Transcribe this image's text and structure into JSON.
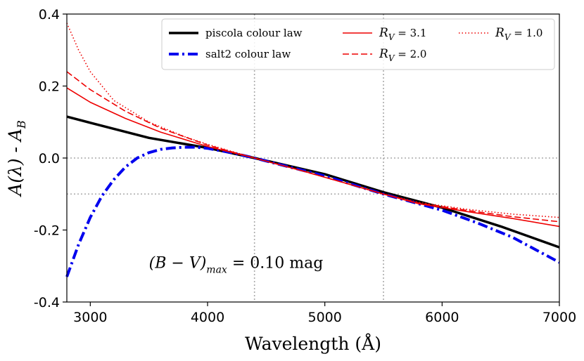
{
  "chart_data": {
    "type": "line",
    "title": "",
    "xlabel": "Wavelength (Å)",
    "ylabel": "A(λ) - A_B",
    "ylabel_parts": {
      "main": "A(λ) - A",
      "sub": "B"
    },
    "xlim": [
      2800,
      7000
    ],
    "ylim": [
      -0.4,
      0.4
    ],
    "xticks": [
      3000,
      4000,
      5000,
      6000,
      7000
    ],
    "yticks": [
      -0.4,
      -0.2,
      0.0,
      0.2,
      0.4
    ],
    "xtick_labels": [
      "3000",
      "4000",
      "5000",
      "6000",
      "7000"
    ],
    "ytick_labels": [
      "-0.4",
      "-0.2",
      "0.0",
      "0.2",
      "0.4"
    ],
    "reference_lines": {
      "vertical": [
        4400,
        5500
      ],
      "horizontal": [
        0.0,
        -0.1
      ]
    },
    "annotation": {
      "text": "(B − V)max = 0.10 mag",
      "math": "(B − V)",
      "sub": "max",
      "rest": " = 0.10 mag",
      "x": 3500,
      "y": -0.29
    },
    "legend_position": "top-right",
    "series": [
      {
        "name": "piscola colour law",
        "label_text": "piscola colour law",
        "color": "#000000",
        "style": "solid",
        "width": 3.5,
        "x": [
          2800,
          3000,
          3500,
          4000,
          4400,
          5000,
          5500,
          6000,
          6500,
          7000
        ],
        "y": [
          0.115,
          0.098,
          0.056,
          0.028,
          0.0,
          -0.045,
          -0.095,
          -0.138,
          -0.19,
          -0.248
        ]
      },
      {
        "name": "salt2 colour law",
        "label_text": "salt2 colour law",
        "color": "#0000ee",
        "style": "dashdot",
        "width": 4,
        "x": [
          2800,
          2900,
          3000,
          3100,
          3200,
          3300,
          3400,
          3500,
          3600,
          3700,
          3800,
          3900,
          4000,
          4200,
          4400,
          4700,
          5000,
          5500,
          6000,
          6300,
          6600,
          7000
        ],
        "y": [
          -0.33,
          -0.24,
          -0.165,
          -0.105,
          -0.06,
          -0.025,
          0.0,
          0.015,
          0.024,
          0.028,
          0.03,
          0.03,
          0.027,
          0.015,
          0.0,
          -0.025,
          -0.05,
          -0.1,
          -0.145,
          -0.18,
          -0.22,
          -0.29
        ]
      },
      {
        "name": "R_V = 3.1",
        "label_sym": "R",
        "label_sub": "V",
        "label_val": " = 3.1",
        "color": "#ee0000",
        "style": "solid",
        "width": 1.6,
        "x": [
          2800,
          3000,
          3300,
          3600,
          4000,
          4400,
          4800,
          5200,
          5500,
          5800,
          6200,
          6600,
          7000
        ],
        "y": [
          0.195,
          0.155,
          0.11,
          0.072,
          0.032,
          0.0,
          -0.035,
          -0.072,
          -0.1,
          -0.127,
          -0.148,
          -0.168,
          -0.19
        ]
      },
      {
        "name": "R_V = 2.0",
        "label_sym": "R",
        "label_sub": "V",
        "label_val": " = 2.0",
        "color": "#ee0000",
        "style": "dashed",
        "width": 1.6,
        "x": [
          2800,
          3000,
          3300,
          3600,
          4000,
          4400,
          4800,
          5200,
          5500,
          5800,
          6200,
          6600,
          7000
        ],
        "y": [
          0.24,
          0.19,
          0.13,
          0.083,
          0.036,
          0.0,
          -0.035,
          -0.072,
          -0.1,
          -0.125,
          -0.145,
          -0.163,
          -0.177
        ]
      },
      {
        "name": "R_V = 1.0",
        "label_sym": "R",
        "label_sub": "V",
        "label_val": " = 1.0",
        "color": "#ee0000",
        "style": "dotted",
        "width": 1.6,
        "x": [
          2800,
          2900,
          3000,
          3200,
          3500,
          3800,
          4000,
          4400,
          4800,
          5200,
          5500,
          5800,
          6200,
          6600,
          7000
        ],
        "y": [
          0.375,
          0.3,
          0.24,
          0.16,
          0.1,
          0.06,
          0.038,
          0.0,
          -0.035,
          -0.072,
          -0.1,
          -0.123,
          -0.142,
          -0.156,
          -0.165
        ]
      }
    ]
  }
}
